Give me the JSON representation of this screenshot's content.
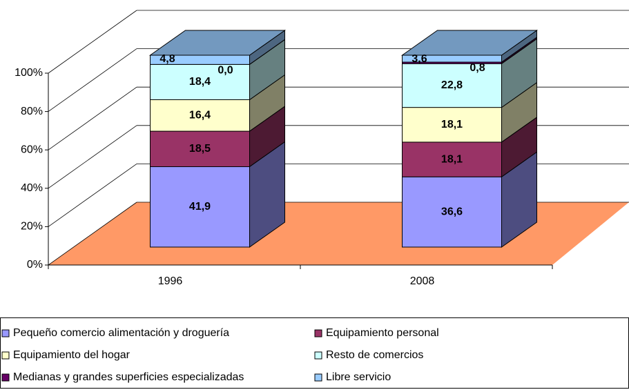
{
  "chart_data": {
    "type": "bar3d_stacked",
    "categories": [
      "1996",
      "2008"
    ],
    "ylim": [
      0,
      100
    ],
    "yticks": [
      {
        "value": 0,
        "label": "0%"
      },
      {
        "value": 20,
        "label": "20%"
      },
      {
        "value": 40,
        "label": "40%"
      },
      {
        "value": 60,
        "label": "60%"
      },
      {
        "value": 80,
        "label": "80%"
      },
      {
        "value": 100,
        "label": "100%"
      }
    ],
    "grid": true,
    "floor_color": "#ff9966",
    "legend": "bottom",
    "series": [
      {
        "name": "Pequeño comercio alimentación y droguería",
        "color": "#9999ff",
        "values": [
          41.9,
          36.6
        ],
        "value_labels": [
          "41,9",
          "36,6"
        ]
      },
      {
        "name": "Equipamiento personal",
        "color": "#993366",
        "values": [
          18.5,
          18.1
        ],
        "value_labels": [
          "18,5",
          "18,1"
        ]
      },
      {
        "name": "Equipamiento del hogar",
        "color": "#ffffcc",
        "values": [
          16.4,
          18.1
        ],
        "value_labels": [
          "16,4",
          "18,1"
        ]
      },
      {
        "name": "Resto de comercios",
        "color": "#ccffff",
        "values": [
          18.4,
          22.8
        ],
        "value_labels": [
          "18,4",
          "22,8"
        ]
      },
      {
        "name": "Medianas y grandes superficies especializadas",
        "color": "#660066",
        "values": [
          0.0,
          0.8
        ],
        "value_labels": [
          "0,0",
          "0,8"
        ]
      },
      {
        "name": "Libre servicio",
        "color": "#99ccff",
        "values": [
          4.8,
          3.6
        ],
        "value_labels": [
          "4,8",
          "3,6"
        ]
      }
    ]
  }
}
